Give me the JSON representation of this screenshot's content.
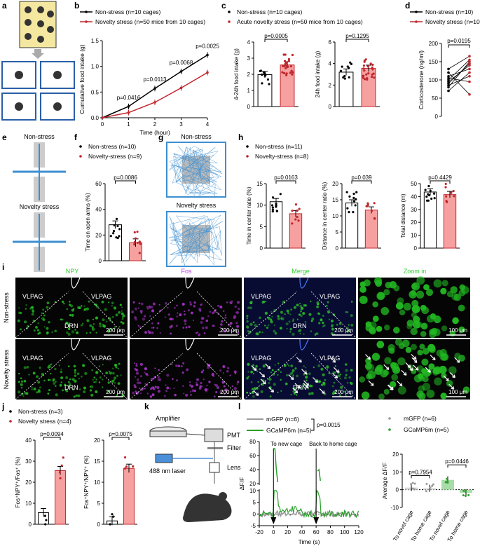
{
  "panels": {
    "a": {
      "label": "a"
    },
    "b": {
      "label": "b"
    },
    "c": {
      "label": "c"
    },
    "d": {
      "label": "d"
    },
    "e": {
      "label": "e",
      "row1": "Non-stress",
      "row2": "Novelty stress"
    },
    "f": {
      "label": "f"
    },
    "g": {
      "label": "g",
      "row1": "Non-stress",
      "row2": "Novelty stress"
    },
    "h": {
      "label": "h"
    },
    "i": {
      "label": "i"
    },
    "j": {
      "label": "j"
    },
    "k": {
      "label": "k"
    },
    "l": {
      "label": "l"
    }
  },
  "colors": {
    "stress": "#c0272d",
    "stress_fill": "#f7a0a0",
    "gcamp": "#2ca02c",
    "gcamp_fill": "#a8dca8",
    "mgfp": "#9a9a9a",
    "mgfp_fill": "#d6d6d6",
    "maze": "#3d8fd1"
  },
  "chart_data": [
    {
      "id": "b",
      "type": "line",
      "legend": [
        "Non-stress (n=10 cages)",
        "Novelty stress (n=50 mice from 10 cages)"
      ],
      "xlabel": "Time (hour)",
      "ylabel": "Cumulative food intake (g)",
      "xlim": [
        0,
        4
      ],
      "ylim": [
        0,
        1.5
      ],
      "x_ticks": [
        "0",
        "1",
        "2",
        "3",
        "4"
      ],
      "y_ticks": [
        "0.0",
        "0.5",
        "1.0",
        "1.5"
      ],
      "x": [
        0,
        1,
        2,
        3,
        4
      ],
      "series": [
        {
          "name": "Non-stress (n=10 cages)",
          "values": [
            0,
            0.22,
            0.57,
            0.9,
            1.22
          ]
        },
        {
          "name": "Novelty stress (n=50 mice from 10 cages)",
          "values": [
            0,
            0.1,
            0.3,
            0.58,
            0.88
          ]
        }
      ],
      "annotations": [
        "p=0.0416",
        "p=0.0113",
        "p=0.0068",
        "p=0.0025"
      ]
    },
    {
      "id": "c",
      "type": "bar",
      "legend": [
        "Non-stress (n=10 cages)",
        "Acute novelty stress (n=50 mice from 10 cages)"
      ],
      "subplots": [
        {
          "ylabel": "4-24h food intake (g)",
          "ylim": [
            0,
            4
          ],
          "y_ticks": [
            "0",
            "1",
            "2",
            "3",
            "4"
          ],
          "values": [
            1.98,
            2.58
          ],
          "p": "p=0.0005"
        },
        {
          "ylabel": "24h food intake (g)",
          "ylim": [
            0,
            6
          ],
          "y_ticks": [
            "0",
            "2",
            "4",
            "6"
          ],
          "values": [
            3.2,
            3.55
          ],
          "p": "p=0.1295"
        }
      ]
    },
    {
      "id": "d",
      "type": "line",
      "legend": [
        "Non-stress (n=10)",
        "Novelty stress (n=10)"
      ],
      "ylabel": "Corticosterone (ng/ml)",
      "ylim": [
        0,
        200
      ],
      "y_ticks": [
        "0",
        "50",
        "100",
        "150",
        "200"
      ],
      "pairs": [
        [
          80,
          150
        ],
        [
          95,
          140
        ],
        [
          100,
          155
        ],
        [
          110,
          130
        ],
        [
          120,
          60
        ],
        [
          85,
          110
        ],
        [
          130,
          165
        ],
        [
          70,
          120
        ],
        [
          105,
          95
        ],
        [
          90,
          145
        ]
      ],
      "p": "p=0.0195"
    },
    {
      "id": "f",
      "type": "bar",
      "legend": [
        "Non-stress (n=10)",
        "Novelty-stress (n=9)"
      ],
      "ylabel": "Time on open arms (%)",
      "ylim": [
        0,
        60
      ],
      "y_ticks": [
        "0",
        "20",
        "40",
        "60"
      ],
      "values": [
        28,
        14
      ],
      "p": "p=0.0086"
    },
    {
      "id": "h",
      "type": "bar",
      "legend": [
        "Non-stress (n=11)",
        "Novelty-stress (n=8)"
      ],
      "subplots": [
        {
          "ylabel": "Time in center ratio (%)",
          "ylim": [
            0,
            15
          ],
          "y_ticks": [
            "0",
            "5",
            "10",
            "15"
          ],
          "values": [
            10.8,
            8.0
          ],
          "p": "p=0.0163"
        },
        {
          "ylabel": "Distance in center ratio (%)",
          "ylim": [
            0,
            20
          ],
          "y_ticks": [
            "0",
            "5",
            "10",
            "15",
            "20"
          ],
          "values": [
            14.0,
            11.8
          ],
          "p": "p=0.039"
        },
        {
          "ylabel": "Total distance (m)",
          "ylim": [
            0,
            50
          ],
          "y_ticks": [
            "0",
            "10",
            "20",
            "30",
            "40",
            "50"
          ],
          "values": [
            43.5,
            41.5
          ],
          "p": "p=0.4429"
        }
      ]
    },
    {
      "id": "j",
      "type": "bar",
      "legend": [
        "Non-stress (n=3)",
        "Novelty stress (n=4)"
      ],
      "subplots": [
        {
          "ylabel": "Fos⁺NPY⁺/Fos⁺ (%)",
          "ylim": [
            0,
            40
          ],
          "y_ticks": [
            "0",
            "10",
            "20",
            "30",
            "40"
          ],
          "values": [
            5.5,
            25.5
          ],
          "p": "p=0.0094"
        },
        {
          "ylabel": "Fos⁺NPY⁺/NPY⁺ (%)",
          "ylim": [
            0,
            20
          ],
          "y_ticks": [
            "0",
            "5",
            "10",
            "15",
            "20"
          ],
          "values": [
            0.8,
            13.3
          ],
          "p": "p=0.0075"
        }
      ]
    },
    {
      "id": "l1",
      "type": "line",
      "legend": [
        "mGFP (n=6)",
        "GCaMP6m (n=5)"
      ],
      "p": "p=0.0015",
      "xlabel": "Time (s)",
      "ylabel": "ΔF/F",
      "xlim": [
        -20,
        120
      ],
      "x_ticks": [
        "-20",
        "0",
        "20",
        "40",
        "60",
        "80",
        "100",
        "120"
      ],
      "y_ticks": [
        "-5",
        "0",
        "5",
        "10",
        "20",
        "40",
        "60",
        "80"
      ],
      "annotations": [
        "To new cage",
        "Back to home cage"
      ]
    },
    {
      "id": "l2",
      "type": "bar",
      "legend": [
        "mGFP (n=6)",
        "GCaMP6m (n=5)"
      ],
      "ylabel": "Average ΔF/F",
      "ylim": [
        -10,
        20
      ],
      "y_ticks": [
        "-10",
        "0",
        "10",
        "20"
      ],
      "categories": [
        "To novel cage",
        "To home cage",
        "To novel cage",
        "To home cage"
      ],
      "values": [
        1.2,
        0.8,
        5.5,
        -1.8
      ],
      "p": [
        "p=0.7954",
        "p=0.0446"
      ]
    }
  ],
  "micrographs": {
    "columns": [
      "NPY",
      "Fos",
      "Merge",
      "Zoom in"
    ],
    "rows": [
      "Non-stress",
      "Novelty stress"
    ],
    "region_labels": [
      "VLPAG",
      "VLPAG",
      "DRN"
    ],
    "scale_200": "200 μm",
    "scale_100": "100 μm",
    "col_colors": [
      "#2fd12f",
      "#c040e0",
      "#2fd12f",
      "#2fd12f"
    ]
  },
  "schematic_k": {
    "amplifier": "Amplifier",
    "pmt": "PMT",
    "filter": "Filter",
    "laser": "488 nm laser",
    "lens": "Lens"
  }
}
